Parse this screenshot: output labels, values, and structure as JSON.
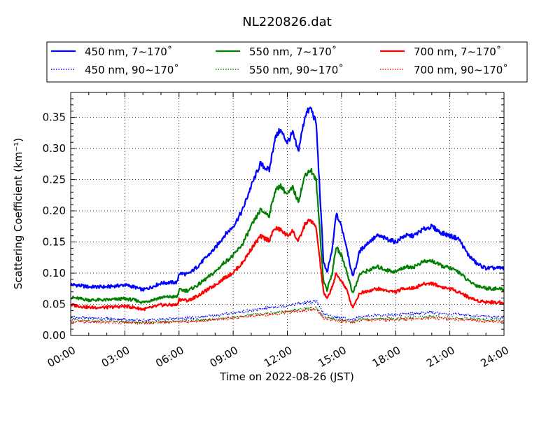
{
  "chart_data": {
    "type": "line",
    "title": "NL220826.dat",
    "xlabel": "Time on 2022-08-26 (JST)",
    "ylabel": "Scattering Coefficient (km⁻¹)",
    "xlim": [
      "00:00",
      "24:00"
    ],
    "ylim": [
      0.0,
      0.39
    ],
    "x_ticks": [
      "00:00",
      "03:00",
      "06:00",
      "09:00",
      "12:00",
      "15:00",
      "18:00",
      "21:00",
      "24:00"
    ],
    "y_ticks": [
      "0.00",
      "0.05",
      "0.10",
      "0.15",
      "0.20",
      "0.25",
      "0.30",
      "0.35"
    ],
    "grid": true,
    "legend_position": "top-center",
    "legend_columns": 3,
    "series": [
      {
        "name": "450 nm, 7∼170˚",
        "color": "#0000ff",
        "style": "solid",
        "x": [
          0,
          1,
          2,
          3,
          3.5,
          4,
          4.5,
          5,
          5.5,
          5.9,
          6.0,
          6.5,
          7,
          7.5,
          8,
          8.5,
          9,
          9.5,
          10,
          10.5,
          11,
          11.3,
          11.6,
          12,
          12.3,
          12.6,
          13,
          13.3,
          13.6,
          14,
          14.2,
          14.5,
          14.7,
          15,
          15.3,
          15.6,
          15.8,
          16,
          16.5,
          17,
          17.5,
          18,
          18.5,
          19,
          19.5,
          20,
          20.5,
          21,
          21.5,
          22,
          22.5,
          23,
          23.5,
          24
        ],
        "values": [
          0.082,
          0.078,
          0.078,
          0.081,
          0.078,
          0.073,
          0.078,
          0.084,
          0.085,
          0.085,
          0.1,
          0.098,
          0.11,
          0.125,
          0.14,
          0.16,
          0.175,
          0.2,
          0.24,
          0.275,
          0.265,
          0.315,
          0.33,
          0.31,
          0.325,
          0.295,
          0.355,
          0.365,
          0.34,
          0.12,
          0.1,
          0.14,
          0.195,
          0.175,
          0.14,
          0.095,
          0.11,
          0.135,
          0.15,
          0.16,
          0.155,
          0.15,
          0.16,
          0.16,
          0.17,
          0.175,
          0.165,
          0.16,
          0.155,
          0.13,
          0.115,
          0.108,
          0.108,
          0.108
        ]
      },
      {
        "name": "550 nm, 7∼170˚",
        "color": "#008000",
        "style": "solid",
        "x": [
          0,
          1,
          2,
          3,
          3.5,
          4,
          4.5,
          5,
          5.5,
          5.9,
          6.0,
          6.5,
          7,
          7.5,
          8,
          8.5,
          9,
          9.5,
          10,
          10.5,
          11,
          11.3,
          11.6,
          12,
          12.3,
          12.6,
          13,
          13.3,
          13.6,
          14,
          14.2,
          14.5,
          14.7,
          15,
          15.3,
          15.6,
          15.8,
          16,
          16.5,
          17,
          17.5,
          18,
          18.5,
          19,
          19.5,
          20,
          20.5,
          21,
          21.5,
          22,
          22.5,
          23,
          23.5,
          24
        ],
        "values": [
          0.061,
          0.057,
          0.057,
          0.059,
          0.057,
          0.053,
          0.057,
          0.061,
          0.062,
          0.062,
          0.073,
          0.072,
          0.08,
          0.091,
          0.102,
          0.117,
          0.128,
          0.146,
          0.175,
          0.201,
          0.193,
          0.23,
          0.241,
          0.226,
          0.237,
          0.215,
          0.259,
          0.266,
          0.248,
          0.088,
          0.073,
          0.102,
          0.142,
          0.128,
          0.102,
          0.069,
          0.08,
          0.098,
          0.105,
          0.11,
          0.105,
          0.102,
          0.11,
          0.11,
          0.118,
          0.12,
          0.112,
          0.108,
          0.102,
          0.088,
          0.08,
          0.076,
          0.075,
          0.074
        ]
      },
      {
        "name": "700 nm, 7∼170˚",
        "color": "#ff0000",
        "style": "solid",
        "x": [
          0,
          1,
          2,
          3,
          3.5,
          4,
          4.5,
          5,
          5.5,
          5.9,
          6.0,
          6.5,
          7,
          7.5,
          8,
          8.5,
          9,
          9.5,
          10,
          10.5,
          11,
          11.3,
          11.6,
          12,
          12.3,
          12.6,
          13,
          13.3,
          13.6,
          14,
          14.2,
          14.5,
          14.7,
          15,
          15.3,
          15.6,
          15.8,
          16,
          16.5,
          17,
          17.5,
          18,
          18.5,
          19,
          19.5,
          20,
          20.5,
          21,
          21.5,
          22,
          22.5,
          23,
          23.5,
          24
        ],
        "values": [
          0.049,
          0.045,
          0.045,
          0.047,
          0.045,
          0.042,
          0.045,
          0.049,
          0.049,
          0.049,
          0.058,
          0.056,
          0.063,
          0.072,
          0.081,
          0.092,
          0.101,
          0.116,
          0.139,
          0.159,
          0.153,
          0.172,
          0.17,
          0.16,
          0.168,
          0.15,
          0.18,
          0.185,
          0.172,
          0.07,
          0.058,
          0.08,
          0.098,
          0.088,
          0.072,
          0.045,
          0.055,
          0.068,
          0.072,
          0.075,
          0.072,
          0.07,
          0.076,
          0.076,
          0.082,
          0.084,
          0.078,
          0.075,
          0.07,
          0.062,
          0.056,
          0.054,
          0.053,
          0.053
        ]
      },
      {
        "name": "450 nm, 90∼170˚",
        "color": "#0000ff",
        "style": "dotted",
        "x": [
          0,
          2,
          4,
          5,
          6,
          7,
          8,
          9,
          10,
          11,
          12,
          13,
          13.6,
          14,
          14.5,
          15,
          15.6,
          16,
          17,
          18,
          19,
          20,
          21,
          22,
          23,
          24
        ],
        "values": [
          0.029,
          0.027,
          0.024,
          0.026,
          0.027,
          0.029,
          0.032,
          0.036,
          0.04,
          0.045,
          0.048,
          0.053,
          0.055,
          0.035,
          0.03,
          0.028,
          0.025,
          0.03,
          0.033,
          0.033,
          0.035,
          0.037,
          0.034,
          0.033,
          0.03,
          0.029
        ]
      },
      {
        "name": "550 nm, 90∼170˚",
        "color": "#008000",
        "style": "dotted",
        "x": [
          0,
          2,
          4,
          5,
          6,
          7,
          8,
          9,
          10,
          11,
          12,
          13,
          13.6,
          14,
          14.5,
          15,
          15.6,
          16,
          17,
          18,
          19,
          20,
          21,
          22,
          23,
          24
        ],
        "values": [
          0.024,
          0.023,
          0.021,
          0.022,
          0.023,
          0.024,
          0.026,
          0.029,
          0.033,
          0.036,
          0.039,
          0.043,
          0.044,
          0.03,
          0.027,
          0.025,
          0.022,
          0.026,
          0.027,
          0.027,
          0.029,
          0.03,
          0.028,
          0.027,
          0.025,
          0.024
        ]
      },
      {
        "name": "700 nm, 90∼170˚",
        "color": "#ff0000",
        "style": "dotted",
        "x": [
          0,
          2,
          4,
          5,
          6,
          7,
          8,
          9,
          10,
          11,
          12,
          13,
          13.6,
          14,
          14.5,
          15,
          15.6,
          16,
          17,
          18,
          19,
          20,
          21,
          22,
          23,
          24
        ],
        "values": [
          0.022,
          0.021,
          0.02,
          0.021,
          0.022,
          0.023,
          0.025,
          0.028,
          0.031,
          0.034,
          0.037,
          0.04,
          0.041,
          0.028,
          0.025,
          0.023,
          0.021,
          0.024,
          0.025,
          0.025,
          0.027,
          0.028,
          0.026,
          0.025,
          0.023,
          0.022
        ]
      }
    ]
  }
}
